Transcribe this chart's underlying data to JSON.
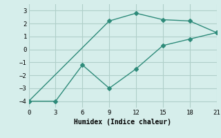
{
  "line1_x": [
    0,
    9,
    12,
    15,
    18,
    21
  ],
  "line1_y": [
    -4,
    2.2,
    2.8,
    2.3,
    2.2,
    1.3
  ],
  "line2_x": [
    0,
    3,
    6,
    9,
    12,
    15,
    18,
    21
  ],
  "line2_y": [
    -4,
    -4,
    -1.2,
    -3.0,
    -1.5,
    0.3,
    0.8,
    1.3
  ],
  "line_color": "#2e8b7a",
  "marker": "D",
  "marker_size": 3,
  "xlabel": "Humidex (Indice chaleur)",
  "xlim": [
    0,
    21
  ],
  "ylim": [
    -4.5,
    3.5
  ],
  "xticks": [
    0,
    3,
    6,
    9,
    12,
    15,
    18,
    21
  ],
  "yticks": [
    -4,
    -3,
    -2,
    -1,
    0,
    1,
    2,
    3
  ],
  "bg_color": "#d6eeeb",
  "grid_color": "#b0cfc9",
  "font": "monospace"
}
